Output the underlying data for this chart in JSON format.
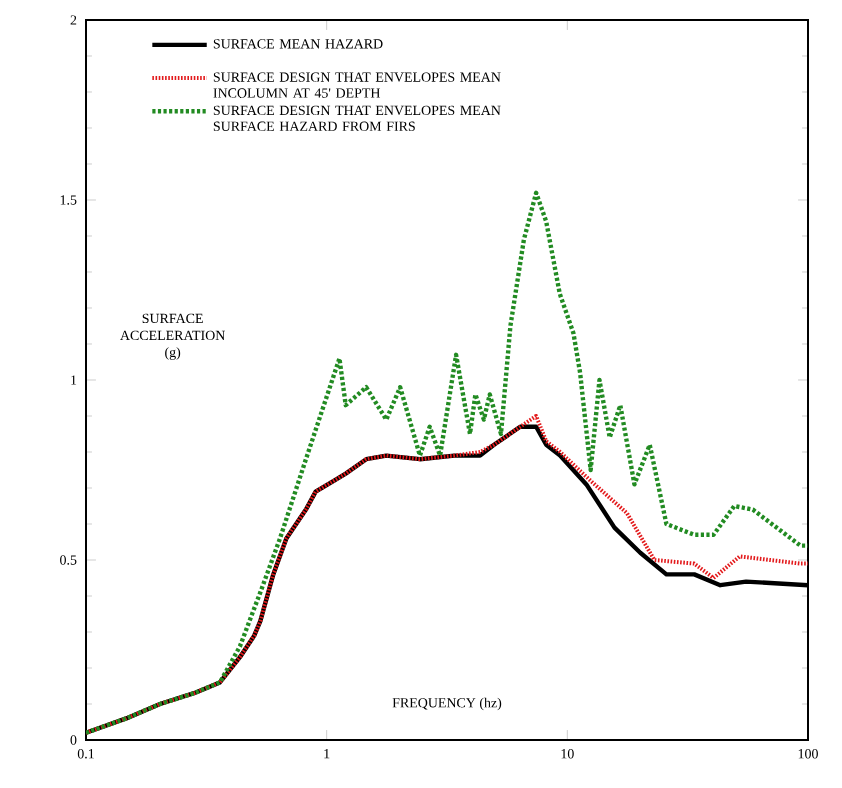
{
  "chart_data": {
    "type": "line",
    "xlabel": "FREQUENCY (hz)",
    "ylabel": "SURFACE ACCELERATION (g)",
    "log": "x",
    "xlim": [
      0.1,
      100
    ],
    "xticks": [
      0.1,
      1,
      10,
      100
    ],
    "ylim": [
      0,
      2
    ],
    "yticks": [
      0,
      0.5,
      1,
      1.5,
      2
    ],
    "legend": "top left",
    "marker": "none",
    "series": [
      {
        "name": "SURFACE MEAN HAZARD",
        "color": "#000000",
        "line_style": "solid",
        "x": [
          0.1,
          0.147,
          0.203,
          0.281,
          0.36,
          0.436,
          0.5,
          0.53,
          0.6,
          0.68,
          0.82,
          0.9,
          1.07,
          1.2,
          1.46,
          1.77,
          2.44,
          3.39,
          4.34,
          4.96,
          6.37,
          7.42,
          8.17,
          9.33,
          12,
          15.7,
          20.1,
          25.8,
          33.7,
          43.2,
          55.3,
          100
        ],
        "values": [
          0.02,
          0.06,
          0.1,
          0.13,
          0.16,
          0.23,
          0.29,
          0.33,
          0.46,
          0.56,
          0.64,
          0.69,
          0.72,
          0.74,
          0.78,
          0.79,
          0.78,
          0.79,
          0.79,
          0.82,
          0.87,
          0.87,
          0.82,
          0.79,
          0.71,
          0.59,
          0.52,
          0.46,
          0.46,
          0.43,
          0.44,
          0.43
        ]
      },
      {
        "name": "SURFACE DESIGN THAT ENVELOPES MEAN INCOLUMN AT 45' DEPTH",
        "color": "#e31a1c",
        "line_style": "dotted",
        "x": [
          0.1,
          0.147,
          0.203,
          0.281,
          0.36,
          0.436,
          0.5,
          0.53,
          0.6,
          0.68,
          0.82,
          0.9,
          1.07,
          1.2,
          1.46,
          1.77,
          2.44,
          3.39,
          4.34,
          4.96,
          6.37,
          7.42,
          8.17,
          9.33,
          12.5,
          17.7,
          23,
          33.7,
          40.5,
          52,
          93,
          100
        ],
        "values": [
          0.02,
          0.06,
          0.1,
          0.13,
          0.16,
          0.23,
          0.29,
          0.33,
          0.46,
          0.56,
          0.64,
          0.69,
          0.72,
          0.74,
          0.78,
          0.79,
          0.78,
          0.79,
          0.8,
          0.82,
          0.87,
          0.9,
          0.83,
          0.8,
          0.72,
          0.63,
          0.5,
          0.49,
          0.45,
          0.51,
          0.49,
          0.49
        ]
      },
      {
        "name": "SURFACE DESIGN THAT ENVELOPES MEAN SURFACE HAZARD FROM FIRS",
        "color": "#228b22",
        "line_style": "dashed",
        "x": [
          0.1,
          0.147,
          0.203,
          0.281,
          0.36,
          0.436,
          0.53,
          0.64,
          0.82,
          1.13,
          1.2,
          1.46,
          1.77,
          2.02,
          2.44,
          2.68,
          2.96,
          3.45,
          3.94,
          4.15,
          4.5,
          4.76,
          5.3,
          5.8,
          6.6,
          7.42,
          8.17,
          9.3,
          10.6,
          11.3,
          12.5,
          13.6,
          15,
          16.6,
          19,
          22,
          25.8,
          33.7,
          40.5,
          49.4,
          59,
          93,
          100
        ],
        "values": [
          0.02,
          0.06,
          0.1,
          0.13,
          0.16,
          0.26,
          0.41,
          0.56,
          0.78,
          1.06,
          0.93,
          0.98,
          0.89,
          0.98,
          0.79,
          0.87,
          0.79,
          1.07,
          0.85,
          0.96,
          0.89,
          0.96,
          0.85,
          1.15,
          1.39,
          1.52,
          1.44,
          1.24,
          1.13,
          1.02,
          0.75,
          1.0,
          0.84,
          0.93,
          0.71,
          0.82,
          0.6,
          0.57,
          0.57,
          0.65,
          0.64,
          0.54,
          0.54
        ]
      }
    ]
  }
}
